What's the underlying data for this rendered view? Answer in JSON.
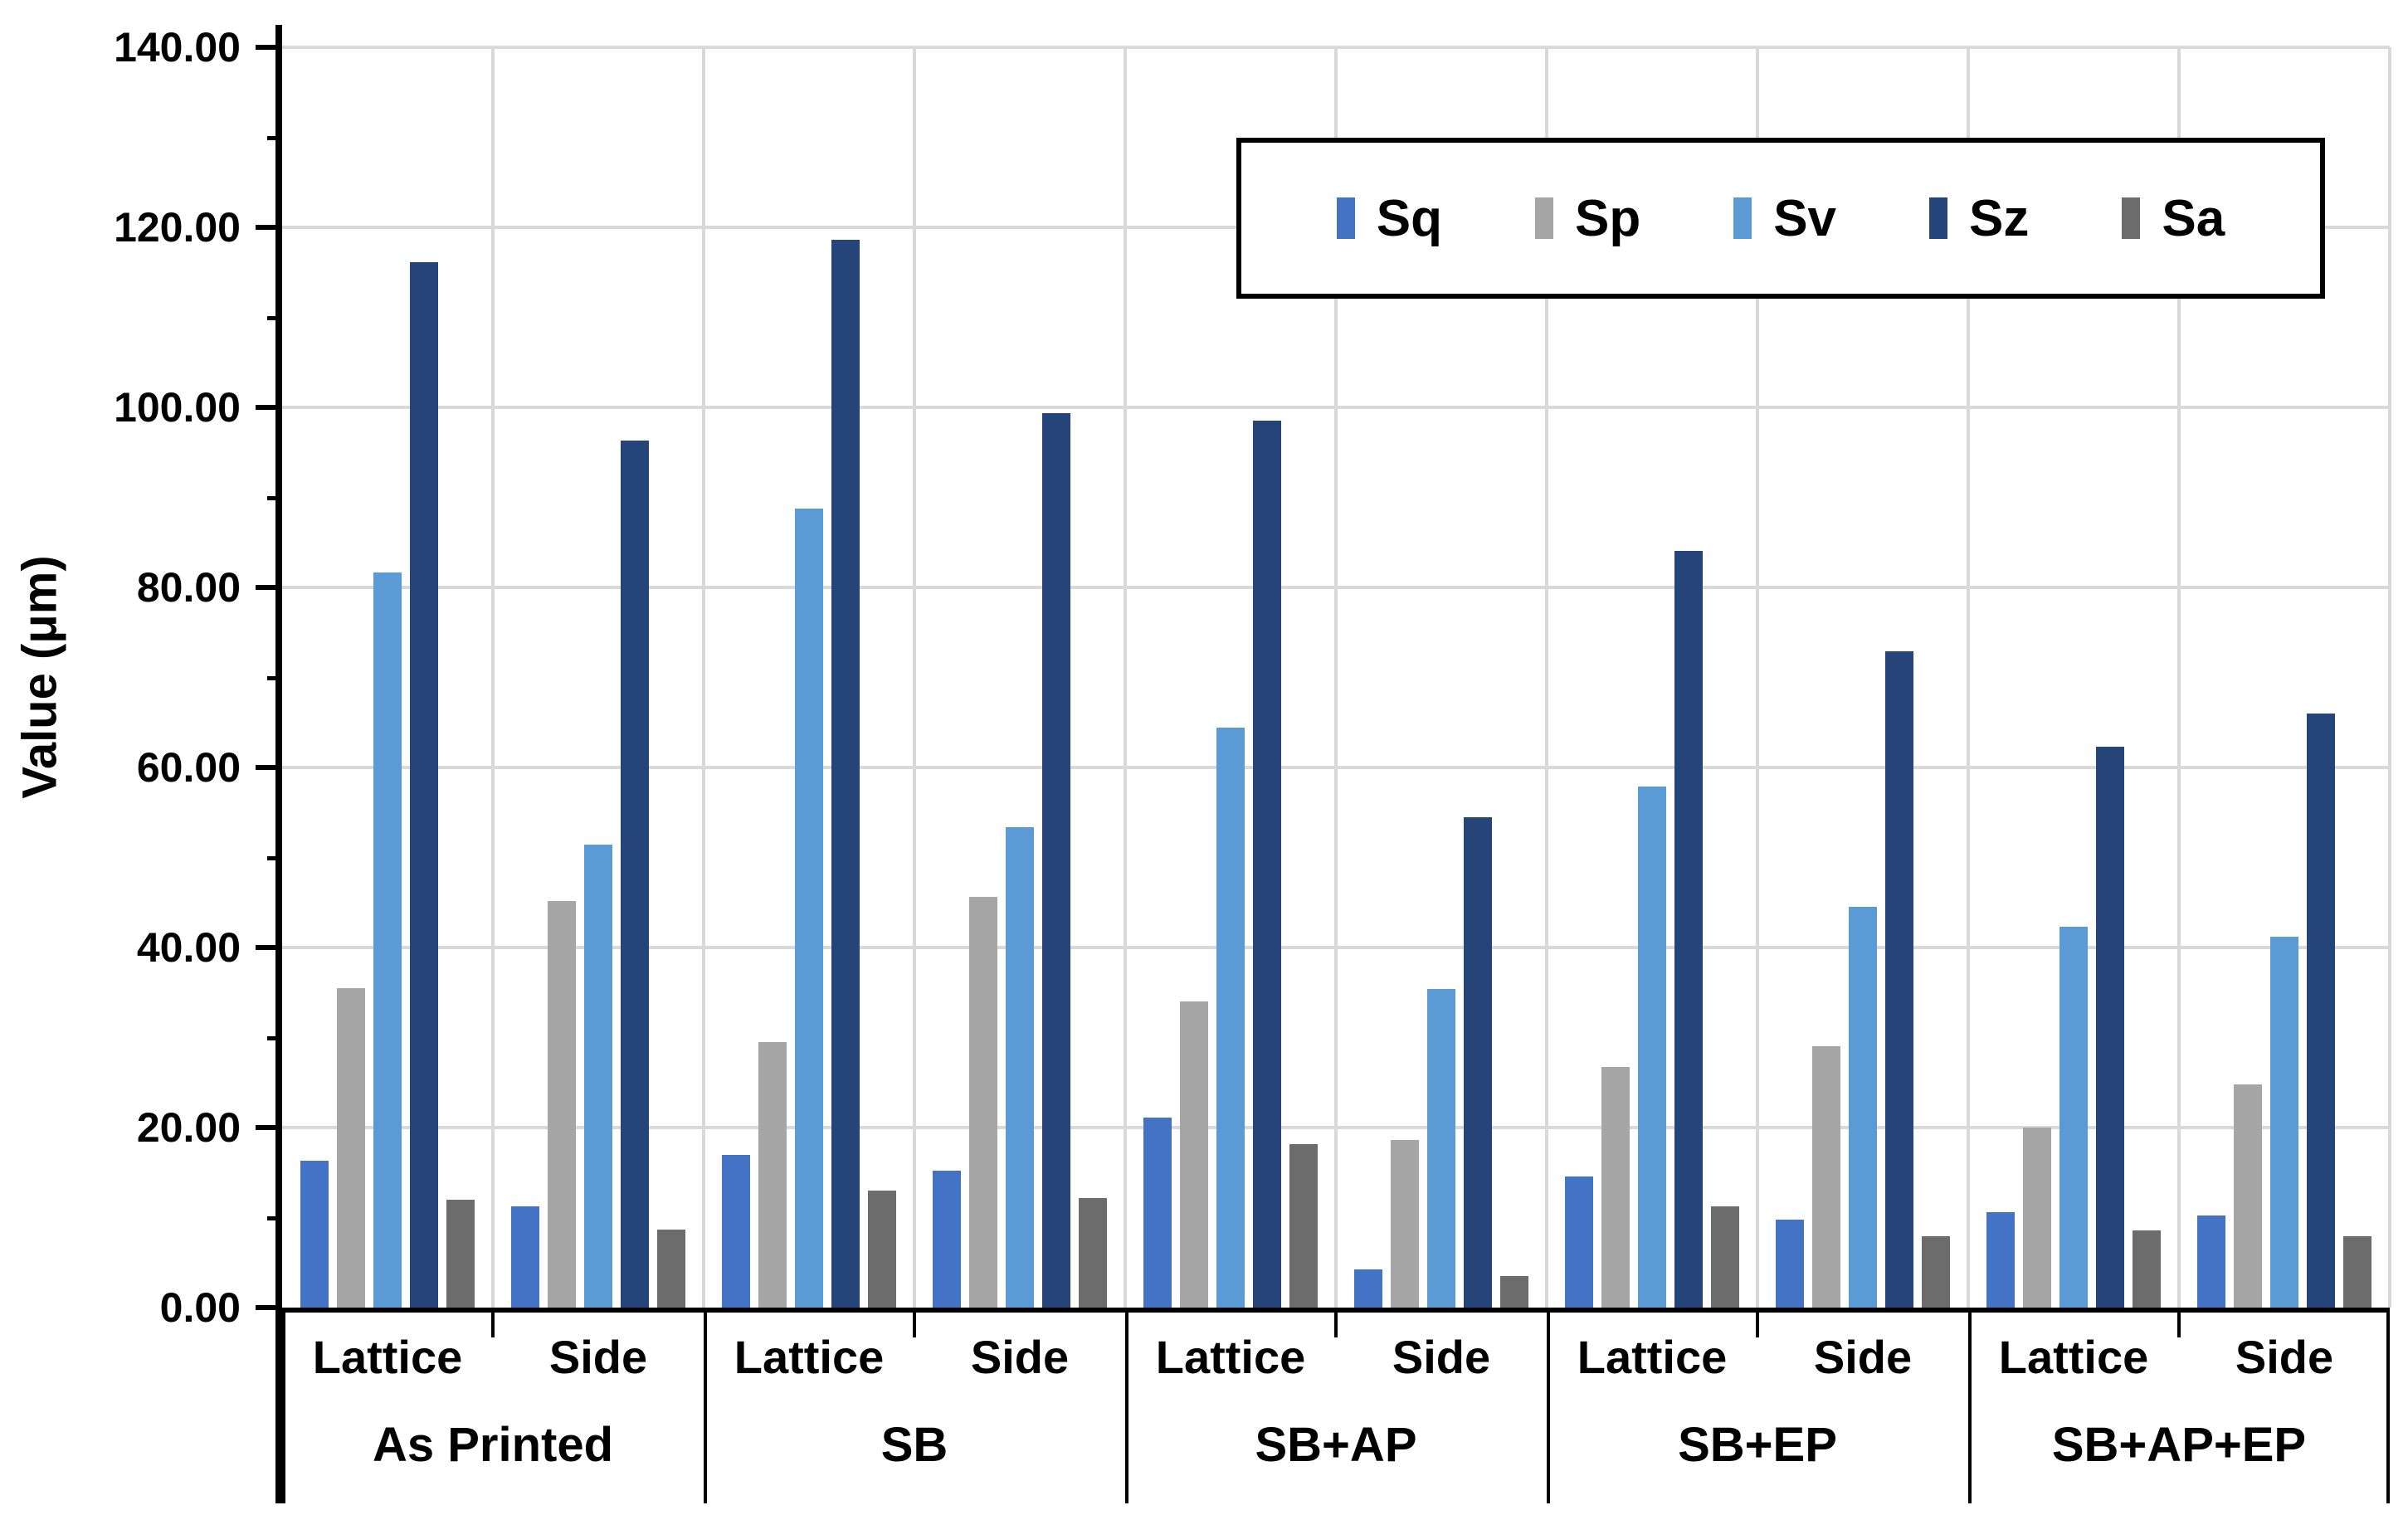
{
  "chart_data": {
    "type": "bar",
    "title": "",
    "ylabel": "Value (μm)",
    "ylim": [
      0,
      140
    ],
    "ytick_step": 20,
    "ytick_labels": [
      "0.00",
      "20.00",
      "40.00",
      "60.00",
      "80.00",
      "100.00",
      "120.00",
      "140.00"
    ],
    "grid": true,
    "legend_position": "top-right",
    "groups": [
      "As Printed",
      "SB",
      "SB+AP",
      "SB+EP",
      "SB+AP+EP"
    ],
    "subcategories": [
      "Lattice",
      "Side"
    ],
    "category_order_note": "values are ordered As Printed-Lattice, As Printed-Side, SB-Lattice, SB-Side, SB+AP-Lattice, SB+AP-Side, SB+EP-Lattice, SB+EP-Side, SB+AP+EP-Lattice, SB+AP+EP-Side",
    "series": [
      {
        "name": "Sq",
        "color": "#4472C4",
        "values": [
          16.3,
          11.2,
          17.0,
          15.2,
          21.1,
          4.2,
          14.6,
          9.8,
          10.6,
          10.2
        ]
      },
      {
        "name": "Sp",
        "color": "#A6A6A6",
        "values": [
          35.5,
          45.2,
          29.5,
          45.6,
          34.0,
          18.6,
          26.7,
          29.0,
          20.0,
          24.8
        ]
      },
      {
        "name": "Sv",
        "color": "#5B9BD5",
        "values": [
          81.7,
          51.4,
          88.8,
          53.4,
          64.4,
          35.4,
          57.9,
          44.5,
          42.3,
          41.2
        ]
      },
      {
        "name": "Sz",
        "color": "#25447A",
        "values": [
          116.1,
          96.3,
          118.6,
          99.4,
          98.5,
          54.5,
          84.1,
          72.9,
          62.3,
          66.0
        ]
      },
      {
        "name": "Sa",
        "color": "#6C6C6C",
        "values": [
          12.0,
          8.7,
          13.0,
          12.2,
          18.2,
          3.5,
          11.2,
          7.9,
          8.6,
          7.9
        ]
      }
    ]
  },
  "styles": {
    "gridline_color": "#D9D9D9",
    "axis_color": "#000000",
    "background": "#FFFFFF",
    "legend_border": "#000000"
  }
}
